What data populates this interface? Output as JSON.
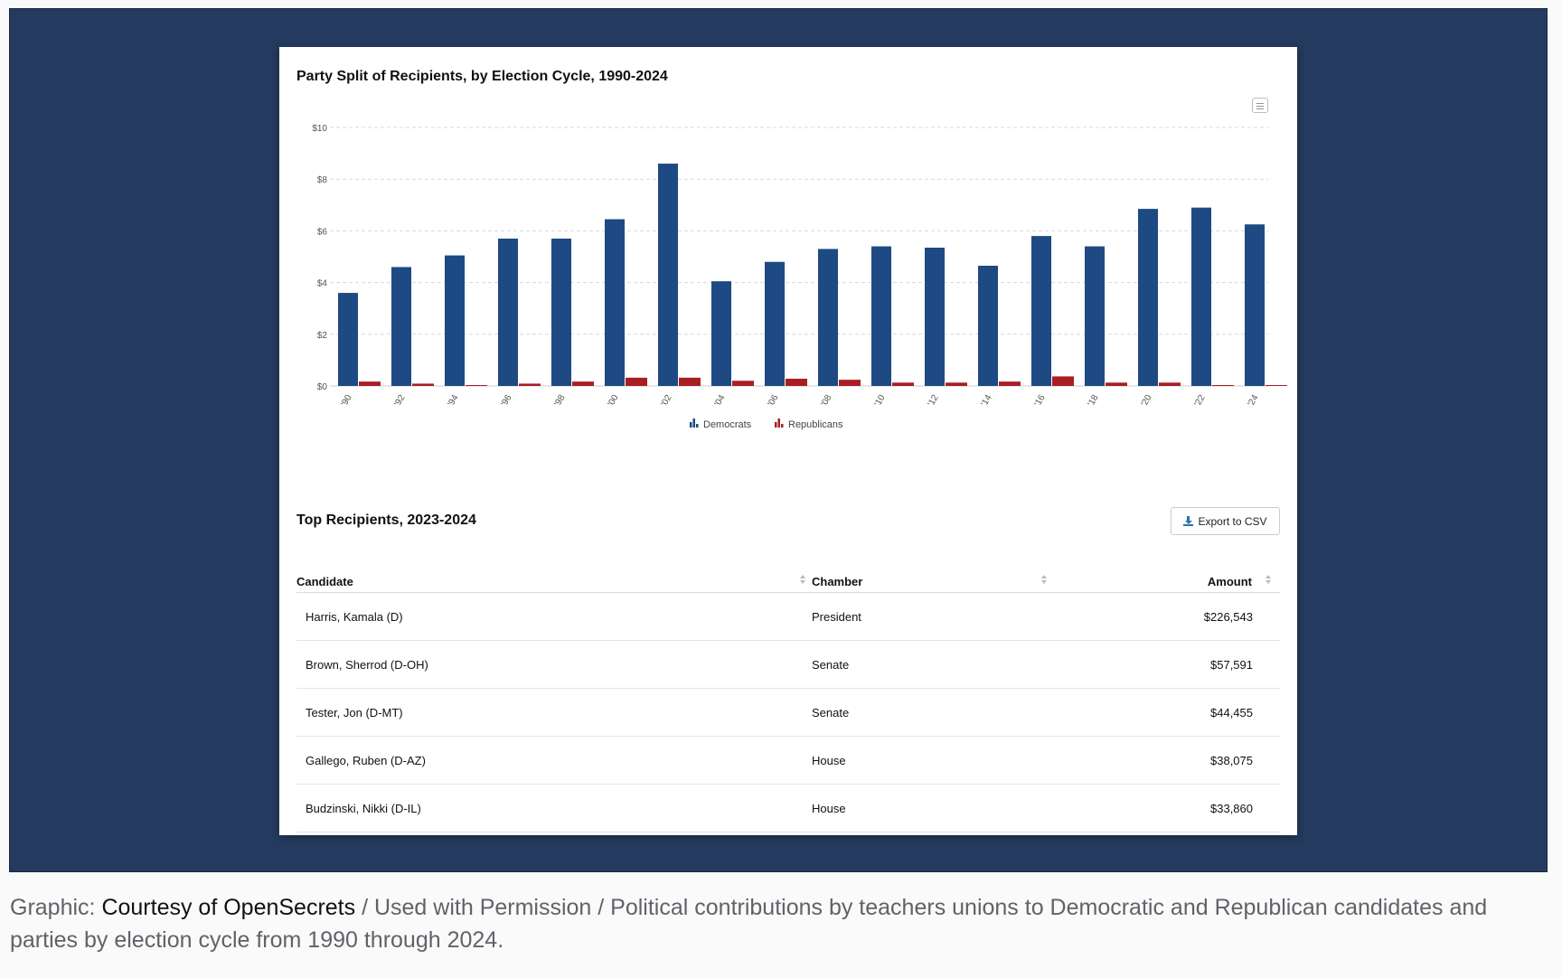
{
  "chart_data": {
    "type": "bar",
    "title": "Party Split of Recipients, by Election Cycle, 1990-2024",
    "categories": [
      "'90",
      "'92",
      "'94",
      "'96",
      "'98",
      "'00",
      "'02",
      "'04",
      "'06",
      "'08",
      "'10",
      "'12",
      "'14",
      "'16",
      "'18",
      "'20",
      "'22",
      "'24"
    ],
    "series": [
      {
        "name": "Democrats",
        "color": "#1d4a82",
        "values": [
          3.6,
          4.6,
          5.05,
          5.7,
          5.7,
          6.45,
          8.6,
          4.05,
          4.8,
          5.3,
          5.4,
          5.35,
          4.65,
          5.8,
          5.4,
          6.85,
          6.9,
          6.25
        ]
      },
      {
        "name": "Republicans",
        "color": "#a91e23",
        "values": [
          0.17,
          0.09,
          0.03,
          0.09,
          0.17,
          0.32,
          0.32,
          0.2,
          0.28,
          0.24,
          0.13,
          0.13,
          0.17,
          0.37,
          0.13,
          0.13,
          0.03,
          0.03
        ]
      }
    ],
    "yticks": [
      "$0",
      "$2",
      "$4",
      "$6",
      "$8",
      "$10"
    ],
    "ylim": [
      0,
      10
    ],
    "grid": true,
    "legend_position": "bottom-center"
  },
  "table": {
    "title": "Top Recipients, 2023-2024",
    "export_label": "Export to CSV",
    "headers": {
      "candidate": "Candidate",
      "chamber": "Chamber",
      "amount": "Amount"
    },
    "rows": [
      {
        "candidate": "Harris, Kamala (D)",
        "chamber": "President",
        "amount": "$226,543"
      },
      {
        "candidate": "Brown, Sherrod (D-OH)",
        "chamber": "Senate",
        "amount": "$57,591"
      },
      {
        "candidate": "Tester, Jon (D-MT)",
        "chamber": "Senate",
        "amount": "$44,455"
      },
      {
        "candidate": "Gallego, Ruben (D-AZ)",
        "chamber": "House",
        "amount": "$38,075"
      },
      {
        "candidate": "Budzinski, Nikki (D-IL)",
        "chamber": "House",
        "amount": "$33,860"
      }
    ]
  },
  "caption": {
    "prefix": "Graphic: ",
    "link": "Courtesy of OpenSecrets",
    "text": " / Used with Permission / Political contributions by teachers unions to Democratic and Republican candidates and parties by election cycle from 1990 through 2024."
  },
  "icons": {
    "menu": "hamburger-menu-icon",
    "export": "download-icon",
    "sort": "sort-icon",
    "legend": "bar-chart-icon"
  }
}
